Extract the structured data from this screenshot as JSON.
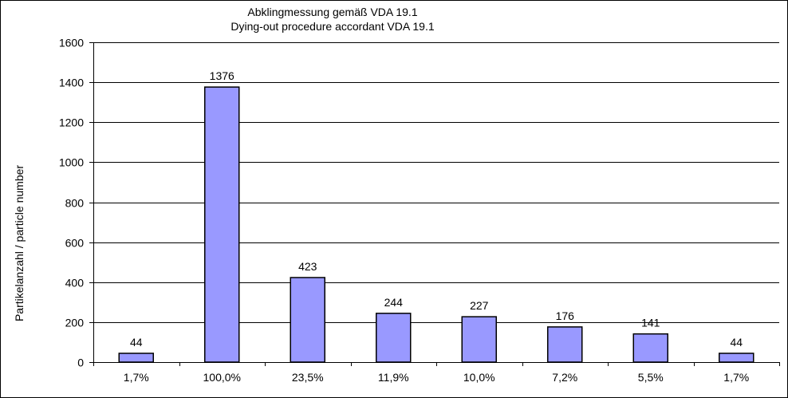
{
  "chart_data": {
    "type": "bar",
    "title": "Abklingmessung  gemäß VDA 19.1",
    "subtitle": "Dying-out procedure accordant VDA 19.1",
    "xlabel": "",
    "ylabel": "Partikelanzahl  / particle number",
    "ylim": [
      0,
      1600
    ],
    "yticks": [
      0,
      200,
      400,
      600,
      800,
      1000,
      1200,
      1400,
      1600
    ],
    "grid": true,
    "legend": "none",
    "categories": [
      "1,7%",
      "100,0%",
      "23,5%",
      "11,9%",
      "10,0%",
      "7,2%",
      "5,5%",
      "1,7%"
    ],
    "values": [
      44,
      1376,
      423,
      244,
      227,
      176,
      141,
      44
    ],
    "data_labels": [
      "44",
      "1376",
      "423",
      "244",
      "227",
      "176",
      "141",
      "44"
    ],
    "bar_color": "#9999FF"
  }
}
